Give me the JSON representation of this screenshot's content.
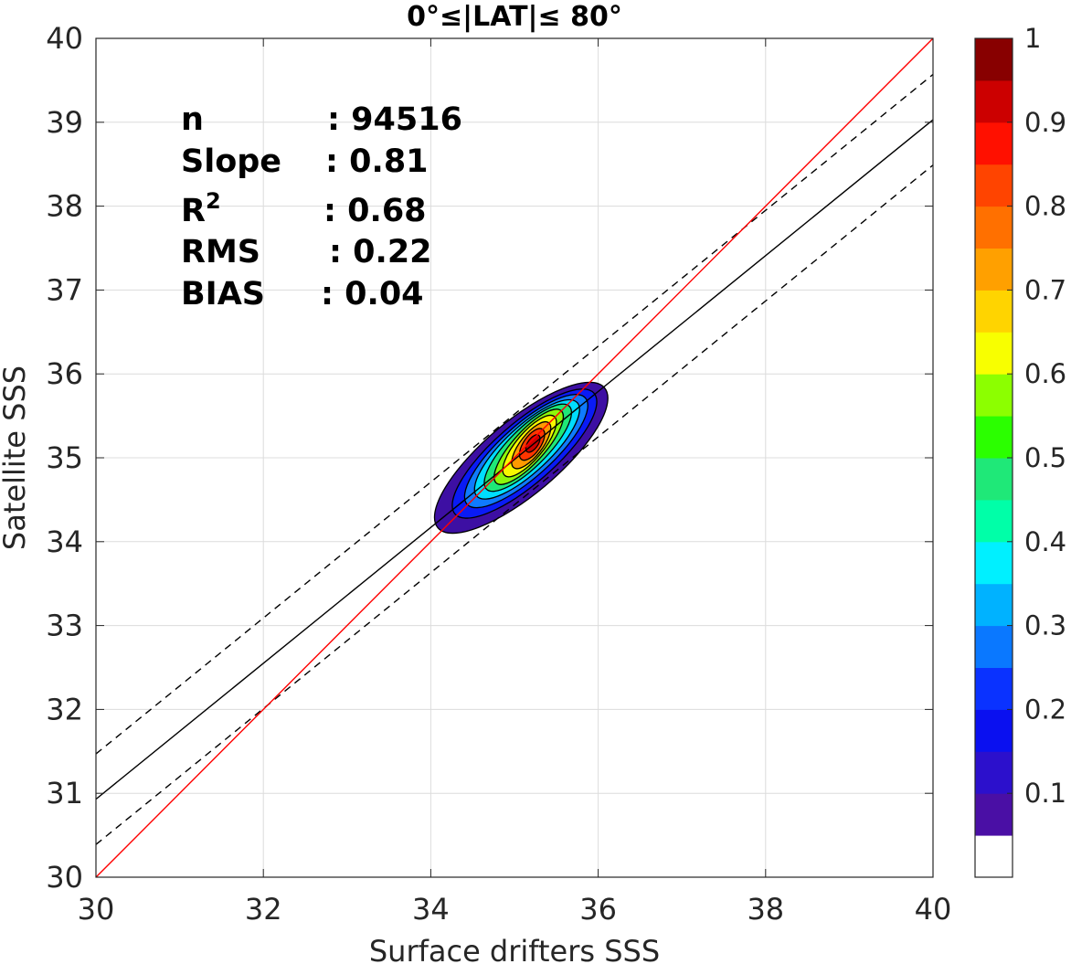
{
  "chart_data": {
    "type": "contour",
    "title": "0°≤|LAT|≤ 80°",
    "xlabel": "Surface drifters SSS",
    "ylabel": "Satellite SSS",
    "xlim": [
      30,
      40
    ],
    "ylim": [
      30,
      40
    ],
    "xticks": [
      "30",
      "32",
      "34",
      "36",
      "38",
      "40"
    ],
    "yticks": [
      "30",
      "31",
      "32",
      "33",
      "34",
      "35",
      "36",
      "37",
      "38",
      "39",
      "40"
    ],
    "grid": true,
    "stats": [
      {
        "label": "n",
        "value": ": 94516"
      },
      {
        "label": "Slope",
        "value": ": 0.81"
      },
      {
        "label": "R",
        "sup": "2",
        "value": ": 0.68"
      },
      {
        "label": "RMS",
        "value": ": 0.22"
      },
      {
        "label": "BIAS",
        "value": ": 0.04"
      }
    ],
    "reference_line": {
      "slope": 1,
      "intercept": 0,
      "color": "#ff0000"
    },
    "fit_line": {
      "slope": 0.81,
      "intercept": 6.63,
      "color": "#000000"
    },
    "fit_band": {
      "offset": 0.54,
      "style": "dashed",
      "color": "#000000"
    },
    "density_peak": {
      "x": 35.15,
      "y": 35.15
    },
    "contour_levels": [
      {
        "level": 0.05,
        "cx": 35.08,
        "cy": 35.0,
        "a": 1.3,
        "b": 0.44,
        "angle_deg": 40,
        "color": "#3d0fa3"
      },
      {
        "level": 0.15,
        "cx": 35.12,
        "cy": 35.05,
        "a": 1.1,
        "b": 0.36,
        "angle_deg": 41,
        "color": "#0a1bf5"
      },
      {
        "level": 0.25,
        "cx": 35.14,
        "cy": 35.08,
        "a": 0.95,
        "b": 0.31,
        "angle_deg": 42,
        "color": "#0f7bff"
      },
      {
        "level": 0.35,
        "cx": 35.15,
        "cy": 35.1,
        "a": 0.82,
        "b": 0.27,
        "angle_deg": 43,
        "color": "#00ddff"
      },
      {
        "level": 0.45,
        "cx": 35.16,
        "cy": 35.12,
        "a": 0.7,
        "b": 0.23,
        "angle_deg": 45,
        "color": "#1fe878"
      },
      {
        "level": 0.55,
        "cx": 35.17,
        "cy": 35.13,
        "a": 0.58,
        "b": 0.19,
        "angle_deg": 48,
        "color": "#8ef70a"
      },
      {
        "level": 0.65,
        "cx": 35.18,
        "cy": 35.14,
        "a": 0.46,
        "b": 0.16,
        "angle_deg": 50,
        "color": "#f8f800"
      },
      {
        "level": 0.75,
        "cx": 35.2,
        "cy": 35.15,
        "a": 0.34,
        "b": 0.13,
        "angle_deg": 52,
        "color": "#ff9a00"
      },
      {
        "level": 0.85,
        "cx": 35.21,
        "cy": 35.16,
        "a": 0.22,
        "b": 0.1,
        "angle_deg": 55,
        "color": "#ff3600"
      },
      {
        "level": 0.95,
        "cx": 35.22,
        "cy": 35.17,
        "a": 0.12,
        "b": 0.06,
        "angle_deg": 55,
        "color": "#cc0000"
      }
    ],
    "colorbar": {
      "ticks": [
        "0.1",
        "0.2",
        "0.3",
        "0.4",
        "0.5",
        "0.6",
        "0.7",
        "0.8",
        "0.9",
        "1"
      ],
      "tick_values": [
        0.1,
        0.2,
        0.3,
        0.4,
        0.5,
        0.6,
        0.7,
        0.8,
        0.9,
        1.0
      ],
      "range": [
        0,
        1
      ],
      "bands": [
        "#ffffff",
        "#4a0fa5",
        "#2c10cc",
        "#0a10f0",
        "#0a32ff",
        "#0a78ff",
        "#00b2ff",
        "#00f0ff",
        "#00ffa8",
        "#1fe878",
        "#2bff00",
        "#8cff00",
        "#f8ff00",
        "#ffd400",
        "#ffa000",
        "#ff7000",
        "#ff4400",
        "#ff1000",
        "#cc0000",
        "#880000"
      ]
    }
  }
}
